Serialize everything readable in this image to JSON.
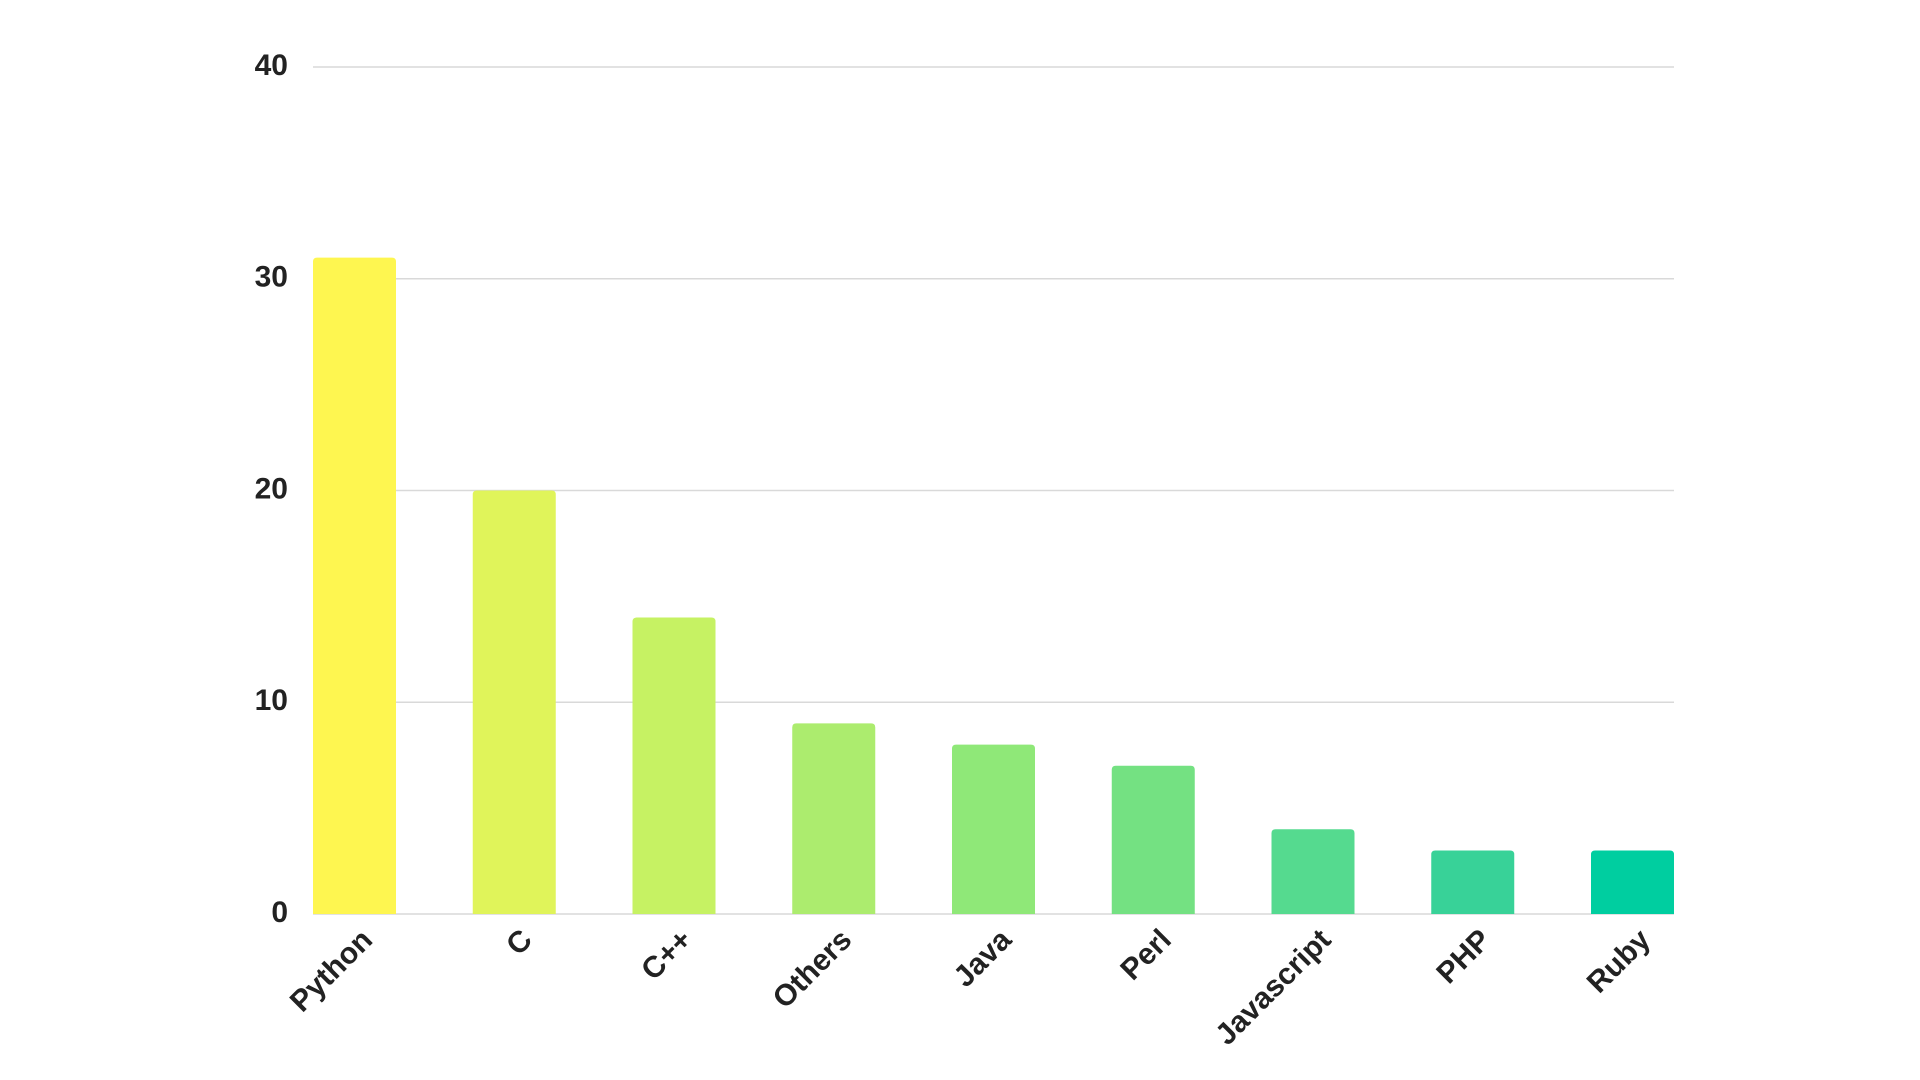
{
  "chart_data": {
    "type": "bar",
    "categories": [
      "Python",
      "C",
      "C++",
      "Others",
      "Java",
      "Perl",
      "Javascript",
      "PHP",
      "Ruby"
    ],
    "values": [
      31,
      20,
      14,
      9,
      8,
      7,
      4,
      3,
      3
    ],
    "colors": [
      "#fef650",
      "#e0f45a",
      "#c6f263",
      "#acec6e",
      "#8fe878",
      "#74e182",
      "#55da8f",
      "#38d298",
      "#00cea0"
    ],
    "ylim": [
      0,
      40
    ],
    "yticks": [
      0,
      10,
      20,
      30,
      40
    ],
    "grid": true
  }
}
